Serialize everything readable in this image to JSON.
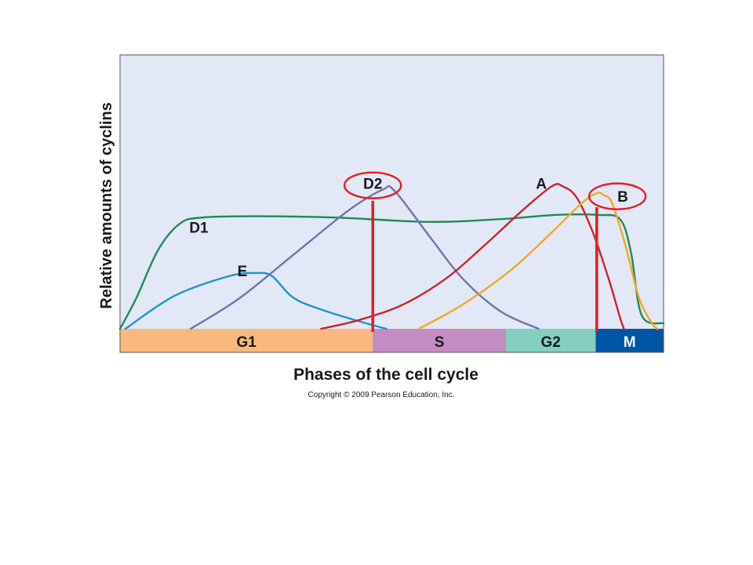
{
  "figure": {
    "ylabel": "Relative amounts of cyclins",
    "xlabel": "Phases of the cell cycle",
    "copyright": "Copyright © 2009 Pearson Education, Inc."
  },
  "colors": {
    "background": "#e2e8f5",
    "marker": "#e41e26"
  },
  "chart_data": {
    "type": "line",
    "title": "",
    "xlabel": "Phases of the cell cycle",
    "ylabel": "Relative amounts of cyclins",
    "xlim": [
      0,
      100
    ],
    "ylim": [
      0,
      100
    ],
    "grid": false,
    "legend": "none",
    "phases": [
      {
        "name": "G1",
        "start": 0,
        "end": 46.5,
        "color": "#f9b87e"
      },
      {
        "name": "S",
        "start": 46.5,
        "end": 71,
        "color": "#c38dc1"
      },
      {
        "name": "G2",
        "start": 71,
        "end": 87.5,
        "color": "#84cfc0"
      },
      {
        "name": "M",
        "start": 87.5,
        "end": 100,
        "color": "#0055a5"
      }
    ],
    "series": [
      {
        "name": "D1",
        "color": "#1f8a55",
        "points": [
          [
            0,
            0
          ],
          [
            3,
            14
          ],
          [
            7,
            36
          ],
          [
            11,
            48
          ],
          [
            15,
            50.8
          ],
          [
            25,
            51.4
          ],
          [
            40,
            50.8
          ],
          [
            57,
            48.8
          ],
          [
            70,
            50.1
          ],
          [
            80,
            52
          ],
          [
            88,
            52
          ],
          [
            92,
            50
          ],
          [
            94,
            35
          ],
          [
            96,
            6
          ],
          [
            100,
            2.5
          ]
        ]
      },
      {
        "name": "E",
        "color": "#1b97cc",
        "points": [
          [
            1,
            0
          ],
          [
            10,
            15
          ],
          [
            20,
            24
          ],
          [
            25,
            25.5
          ],
          [
            28,
            24
          ],
          [
            32,
            14
          ],
          [
            38,
            8
          ],
          [
            46,
            2
          ],
          [
            49,
            0
          ]
        ]
      },
      {
        "name": "D2",
        "color": "#7272ad",
        "points": [
          [
            13,
            0
          ],
          [
            22,
            14
          ],
          [
            32,
            34
          ],
          [
            42,
            54
          ],
          [
            48.3,
            63.5
          ],
          [
            50.5,
            63
          ],
          [
            57,
            42
          ],
          [
            63,
            23
          ],
          [
            70,
            8
          ],
          [
            77,
            0
          ]
        ]
      },
      {
        "name": "A",
        "color": "#c8242d",
        "points": [
          [
            37,
            0
          ],
          [
            44,
            4
          ],
          [
            52,
            11
          ],
          [
            60,
            23
          ],
          [
            67,
            38
          ],
          [
            74,
            54
          ],
          [
            79.5,
            65.2
          ],
          [
            81.5,
            65
          ],
          [
            84,
            60
          ],
          [
            87,
            44
          ],
          [
            90,
            22
          ],
          [
            92,
            5
          ],
          [
            92.7,
            0
          ]
        ]
      },
      {
        "name": "B",
        "color": "#f0a828",
        "points": [
          [
            55,
            0
          ],
          [
            63,
            11
          ],
          [
            72,
            27
          ],
          [
            79,
            43
          ],
          [
            85,
            57.5
          ],
          [
            87.8,
            62
          ],
          [
            89,
            61
          ],
          [
            90.5,
            57.5
          ],
          [
            93,
            38
          ],
          [
            95.5,
            14
          ],
          [
            98,
            2
          ],
          [
            99,
            0
          ]
        ]
      }
    ],
    "curve_labels": [
      {
        "text": "D1",
        "x": 14.5,
        "y": 46.5
      },
      {
        "text": "E",
        "x": 22.5,
        "y": 26.5
      },
      {
        "text": "D2",
        "x": 46.5,
        "y": 66.5
      },
      {
        "text": "A",
        "x": 77.5,
        "y": 66.5
      },
      {
        "text": "B",
        "x": 92.5,
        "y": 60.5
      }
    ],
    "marker_lines": [
      {
        "x": 46.5,
        "y_top": 58.5
      },
      {
        "x": 87.7,
        "y_top": 55.5
      }
    ],
    "marker_circles": [
      {
        "label": "D2",
        "x": 46.5,
        "y": 65.5,
        "rx": 5.2,
        "ry": 5.9
      },
      {
        "label": "B",
        "x": 91.5,
        "y": 60.5,
        "rx": 5.2,
        "ry": 5.9
      }
    ]
  }
}
